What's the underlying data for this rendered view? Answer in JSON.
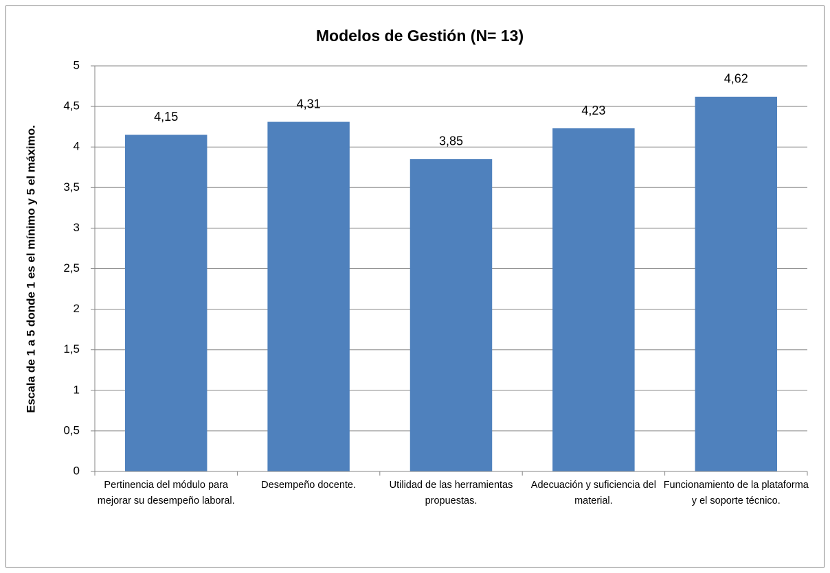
{
  "chart_data": {
    "type": "bar",
    "title": "Modelos de Gestión (N= 13)",
    "y_label": "Escala  de  1  a 5  donde 1  es el mínimo y 5 el máximo.",
    "categories": [
      "Pertinencia del módulo para mejorar su desempeño laboral.",
      "Desempeño docente.",
      "Utilidad de las herramientas propuestas.",
      "Adecuación y suficiencia del material.",
      "Funcionamiento de la plataforma y el soporte técnico."
    ],
    "values": [
      4.15,
      4.31,
      3.85,
      4.23,
      4.62
    ],
    "value_labels": [
      "4,15",
      "4,31",
      "3,85",
      "4,23",
      "4,62"
    ],
    "color": "#4f81bd",
    "ylim": [
      0,
      5
    ],
    "yticks": [
      0,
      {
        "value": 0.5,
        "label": "0,5"
      },
      1,
      {
        "value": 1.5,
        "label": "1,5"
      },
      2,
      {
        "value": 2.5,
        "label": "2,5"
      },
      3,
      {
        "value": 3.5,
        "label": "3,5"
      },
      4,
      {
        "value": 4.5,
        "label": "4,5"
      },
      5
    ],
    "grid": true
  }
}
